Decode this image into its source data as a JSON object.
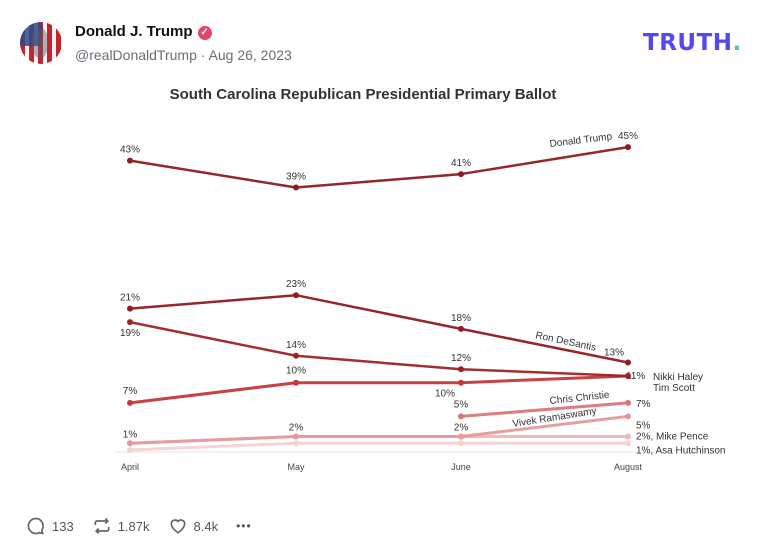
{
  "post": {
    "author_name": "Donald J. Trump",
    "verified_icon": "verified-badge-icon",
    "handle_date": "@realDonaldTrump · Aug 26, 2023",
    "logo_text": "TRUTH",
    "logo_dot": ".",
    "colors": {
      "brand": "#5448ee",
      "brand_dot": "#3dd0a5",
      "verified": "#e2466a"
    }
  },
  "footer": {
    "replies": "133",
    "reposts": "1.87k",
    "likes": "8.4k",
    "more": "•••"
  },
  "chart_data": {
    "type": "line",
    "title": "South Carolina Republican Presidential Primary Ballot",
    "categories": [
      "April",
      "May",
      "June",
      "August"
    ],
    "ylim": [
      0,
      45
    ],
    "grid": false,
    "legend": "none",
    "series": [
      {
        "name": "Donald Trump",
        "values": [
          43,
          39,
          41,
          45
        ],
        "labels": [
          "43%",
          "39%",
          "41%",
          "45%"
        ],
        "color": "#8e1b1f"
      },
      {
        "name": "Ron DeSantis",
        "values": [
          21,
          23,
          18,
          13
        ],
        "labels": [
          "21%",
          "23%",
          "18%",
          "13%"
        ],
        "color": "#8e1b1f"
      },
      {
        "name": "Nikki Haley",
        "values": [
          19,
          14,
          12,
          11
        ],
        "labels": [
          "19%",
          "14%",
          "12%",
          null
        ],
        "color": "#9e2226"
      },
      {
        "name": "Tim Scott",
        "values": [
          7,
          10,
          10,
          11
        ],
        "labels": [
          "7%",
          "10%",
          "10%",
          "11%"
        ],
        "color": "#c4383b"
      },
      {
        "name": "Chris Christie",
        "values": [
          null,
          null,
          5,
          7
        ],
        "labels": [
          null,
          null,
          "5%",
          "7%"
        ],
        "color": "#d9777a"
      },
      {
        "name": "Vivek Ramaswamy",
        "values": [
          1,
          2,
          2,
          5
        ],
        "labels": [
          null,
          null,
          null,
          "5%"
        ],
        "color": "#e49a9c"
      },
      {
        "name": "",
        "values": [
          1,
          2,
          2,
          2
        ],
        "labels": [
          "1%",
          "2%",
          "2%",
          "2%, Mike Pence"
        ],
        "color": "#edb8b9"
      },
      {
        "name": "",
        "values": [
          0,
          1,
          1,
          1
        ],
        "labels": [
          null,
          null,
          null,
          "1%, Asa Hutchinson"
        ],
        "color": "#f3d2d3"
      }
    ]
  }
}
